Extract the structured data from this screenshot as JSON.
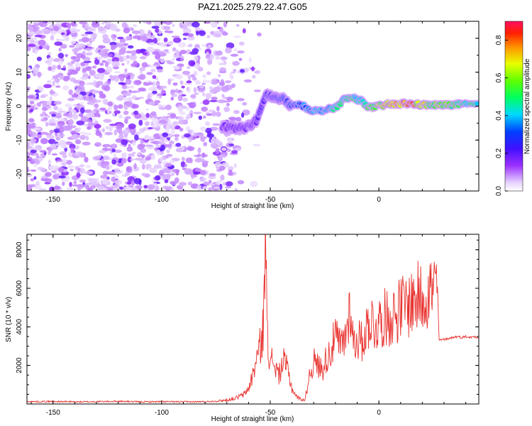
{
  "title": "PAZ1.2025.279.22.47.G05",
  "chart_data": [
    {
      "type": "heatmap",
      "xlabel": "Height of straight line (km)",
      "ylabel": "Frequency (Hz)",
      "xlim": [
        -162,
        46
      ],
      "ylim": [
        -25,
        25
      ],
      "xticks": [
        -150,
        -100,
        -50,
        0
      ],
      "yticks": [
        -20,
        -10,
        0,
        10,
        20
      ],
      "colorbar": {
        "label": "Normalized spectral amplitude",
        "range": [
          0,
          0.9
        ],
        "ticks": [
          0.0,
          0.2,
          0.4,
          0.6,
          0.8
        ],
        "tick_labels": [
          "0.0",
          "0.2",
          "0.4",
          "0.6",
          "0.8"
        ]
      },
      "signal_track": [
        {
          "x": -72,
          "y": -6.0,
          "v": 0.12
        },
        {
          "x": -66,
          "y": -6.5,
          "v": 0.15
        },
        {
          "x": -60,
          "y": -6.0,
          "v": 0.18
        },
        {
          "x": -56,
          "y": -4.0,
          "v": 0.2
        },
        {
          "x": -52,
          "y": 3.5,
          "v": 0.25
        },
        {
          "x": -48,
          "y": 2.5,
          "v": 0.25
        },
        {
          "x": -44,
          "y": 2.0,
          "v": 0.3
        },
        {
          "x": -40,
          "y": 0.0,
          "v": 0.32
        },
        {
          "x": -36,
          "y": 0.5,
          "v": 0.35
        },
        {
          "x": -32,
          "y": -1.0,
          "v": 0.38
        },
        {
          "x": -28,
          "y": -1.5,
          "v": 0.42
        },
        {
          "x": -24,
          "y": -1.0,
          "v": 0.4
        },
        {
          "x": -20,
          "y": -0.5,
          "v": 0.45
        },
        {
          "x": -16,
          "y": 2.0,
          "v": 0.48
        },
        {
          "x": -12,
          "y": 2.5,
          "v": 0.5
        },
        {
          "x": -8,
          "y": 1.5,
          "v": 0.45
        },
        {
          "x": -4,
          "y": -0.5,
          "v": 0.55
        },
        {
          "x": 0,
          "y": 0.0,
          "v": 0.62
        },
        {
          "x": 4,
          "y": 0.5,
          "v": 0.7
        },
        {
          "x": 8,
          "y": 0.5,
          "v": 0.8
        },
        {
          "x": 12,
          "y": 0.8,
          "v": 0.85
        },
        {
          "x": 16,
          "y": 0.6,
          "v": 0.75
        },
        {
          "x": 20,
          "y": 0.4,
          "v": 0.65
        },
        {
          "x": 24,
          "y": 0.3,
          "v": 0.6
        },
        {
          "x": 28,
          "y": 0.3,
          "v": 0.58
        },
        {
          "x": 32,
          "y": 0.4,
          "v": 0.6
        },
        {
          "x": 36,
          "y": 0.5,
          "v": 0.55
        },
        {
          "x": 40,
          "y": 0.5,
          "v": 0.5
        },
        {
          "x": 46,
          "y": 0.5,
          "v": 0.48
        }
      ]
    },
    {
      "type": "line",
      "xlabel": "Height of straight line (km)",
      "ylabel": "SNR (10 * v/v)",
      "xlim": [
        -162,
        46
      ],
      "ylim": [
        0,
        8800
      ],
      "xticks": [
        -150,
        -100,
        -50,
        0
      ],
      "yticks": [
        2000,
        4000,
        6000,
        8000
      ],
      "color": "#e8332f",
      "series": [
        {
          "x": [
            -162,
            -150,
            -140,
            -130,
            -120,
            -110,
            -100,
            -90,
            -80,
            -75,
            -70,
            -66,
            -62,
            -60,
            -58,
            -56,
            -54,
            -53,
            -52,
            -51,
            -50,
            -49,
            -48,
            -46,
            -44,
            -42,
            -40,
            -38,
            -36,
            -34,
            -32,
            -30,
            -28,
            -26,
            -24,
            -22,
            -20,
            -18,
            -16,
            -14,
            -13,
            -12,
            -11,
            -10,
            -8,
            -6,
            -4,
            -2,
            0,
            2,
            4,
            6,
            8,
            10,
            12,
            14,
            16,
            18,
            20,
            22,
            24,
            26,
            27,
            27.5,
            28,
            30,
            32,
            34,
            36,
            38,
            40,
            42,
            44,
            46
          ],
          "y": [
            120,
            130,
            110,
            120,
            140,
            110,
            120,
            110,
            120,
            150,
            200,
            300,
            500,
            800,
            1500,
            2500,
            3200,
            4500,
            8700,
            3500,
            1800,
            2400,
            2000,
            1500,
            2200,
            1800,
            800,
            400,
            250,
            200,
            1500,
            2200,
            2000,
            1800,
            2400,
            2800,
            3500,
            3000,
            3200,
            4500,
            5200,
            3500,
            3000,
            3500,
            3200,
            3800,
            4500,
            4000,
            4200,
            4500,
            4400,
            4600,
            4700,
            5000,
            5100,
            5200,
            5400,
            5500,
            5600,
            5800,
            5900,
            6000,
            6100,
            3400,
            3300,
            3350,
            3400,
            3450,
            3500,
            3450,
            3500,
            3450,
            3500,
            3450
          ]
        }
      ]
    }
  ]
}
